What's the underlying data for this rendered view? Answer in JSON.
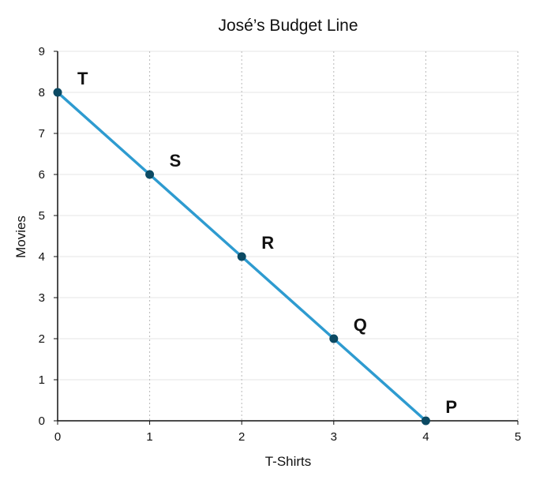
{
  "chart_data": {
    "type": "line",
    "title": "José’s Budget Line",
    "xlabel": "T-Shirts",
    "ylabel": "Movies",
    "xlim": [
      0,
      5
    ],
    "ylim": [
      0,
      9
    ],
    "x_ticks": [
      "0",
      "1",
      "2",
      "3",
      "4",
      "5"
    ],
    "y_ticks": [
      "0",
      "1",
      "2",
      "3",
      "4",
      "5",
      "6",
      "7",
      "8",
      "9"
    ],
    "grid": "vertical dashed",
    "series": [
      {
        "color": "#2e9bd0",
        "marker_color": "#0c4a63",
        "points": [
          {
            "x": 0,
            "y": 8,
            "label": "T"
          },
          {
            "x": 1,
            "y": 6,
            "label": "S"
          },
          {
            "x": 2,
            "y": 4,
            "label": "R"
          },
          {
            "x": 3,
            "y": 2,
            "label": "Q"
          },
          {
            "x": 4,
            "y": 0,
            "label": "P"
          }
        ]
      }
    ]
  }
}
